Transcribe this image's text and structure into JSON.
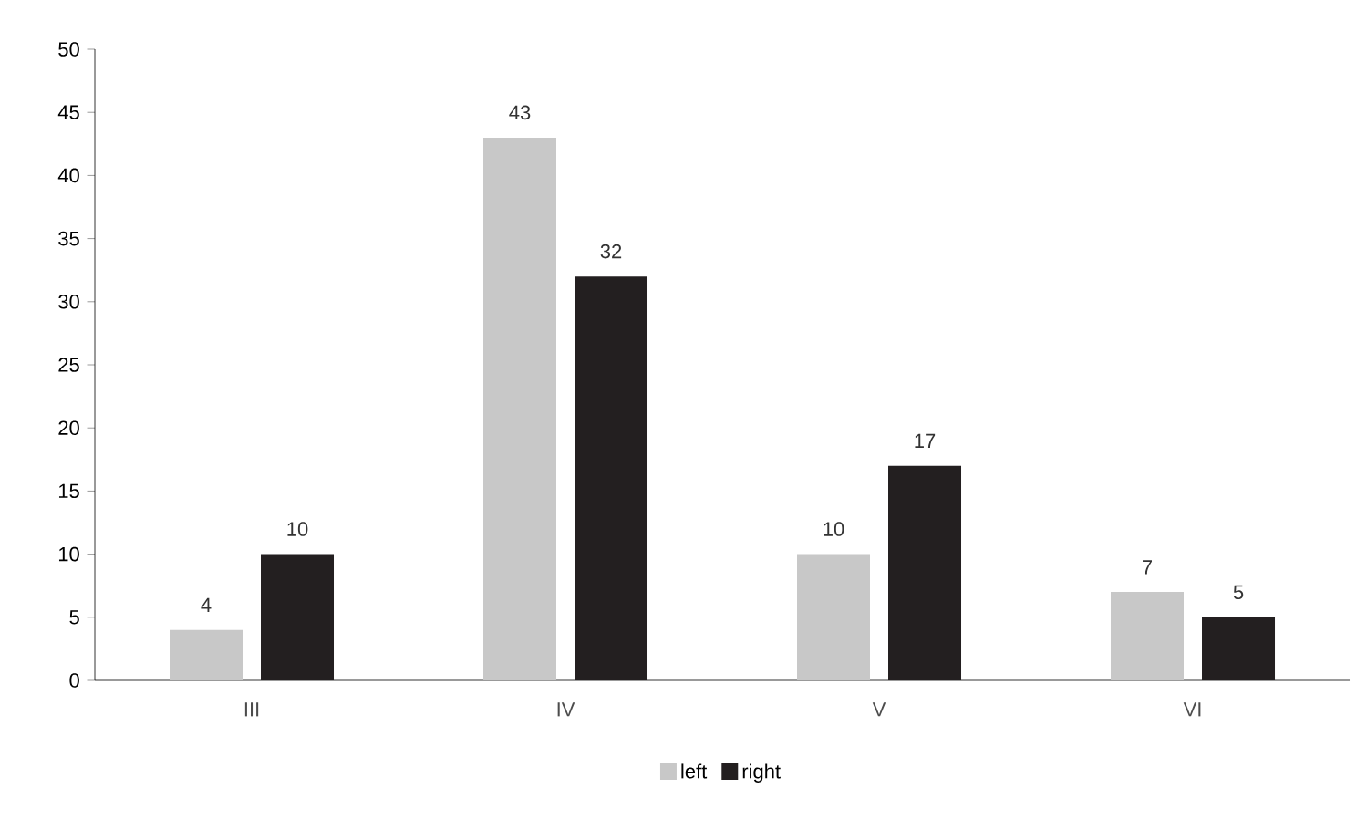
{
  "chart_data": {
    "type": "bar",
    "categories": [
      "III",
      "IV",
      "V",
      "VI"
    ],
    "series": [
      {
        "name": "left",
        "color": "#c8c8c8",
        "values": [
          4,
          43,
          10,
          7
        ]
      },
      {
        "name": "right",
        "color": "#231f20",
        "values": [
          10,
          32,
          17,
          5
        ]
      }
    ],
    "ylim": [
      0,
      50
    ],
    "yticks": [
      0,
      5,
      10,
      15,
      20,
      25,
      30,
      35,
      40,
      45,
      50
    ],
    "data_labels": true,
    "legend": "bottom"
  }
}
